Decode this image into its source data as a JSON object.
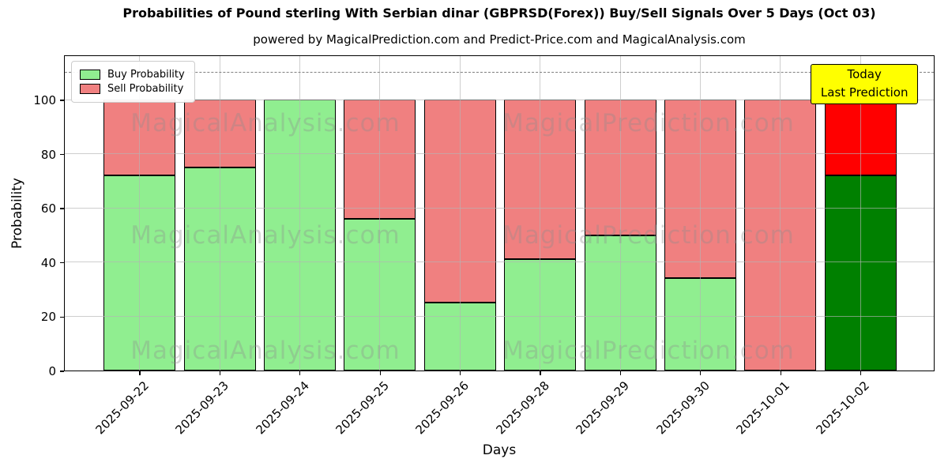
{
  "title": "Probabilities of Pound sterling With Serbian dinar (GBPRSD(Forex)) Buy/Sell Signals Over 5 Days (Oct 03)",
  "subtitle": "powered by MagicalPrediction.com and Predict-Price.com and MagicalAnalysis.com",
  "axes": {
    "xlabel": "Days",
    "ylabel": "Probability",
    "yticks": [
      0,
      20,
      40,
      60,
      80,
      100
    ],
    "ylim": [
      0,
      115.8
    ],
    "dashed_line_y": 110,
    "grid": true
  },
  "legend": {
    "items": [
      {
        "label": "Buy Probability",
        "color": "#90ee90"
      },
      {
        "label": "Sell Probability",
        "color": "#f08080"
      }
    ],
    "position": "upper left"
  },
  "annotation": {
    "lines": [
      "Today",
      "Last Prediction"
    ],
    "bg_color": "#ffff00"
  },
  "watermarks": {
    "left_text": "MagicalAnalysis.com",
    "right_text": "MagicalPrediction.com"
  },
  "colors": {
    "buy": "#90ee90",
    "sell": "#f08080",
    "today_buy": "#008000",
    "today_sell": "#ff0000",
    "bar_edge": "#000000",
    "grid": "rgba(180,180,180,0.65)",
    "dashed": "#7f7f7f"
  },
  "chart_data": {
    "type": "bar",
    "stacked": true,
    "title": "Probabilities of Pound sterling With Serbian dinar (GBPRSD(Forex)) Buy/Sell Signals Over 5 Days (Oct 03)",
    "xlabel": "Days",
    "ylabel": "Probability",
    "ylim": [
      0,
      115.8
    ],
    "grid": true,
    "legend_position": "upper left",
    "categories": [
      "2025-09-22",
      "2025-09-23",
      "2025-09-24",
      "2025-09-25",
      "2025-09-26",
      "2025-09-28",
      "2025-09-29",
      "2025-09-30",
      "2025-10-01",
      "2025-10-02"
    ],
    "series": [
      {
        "name": "Buy Probability",
        "values": [
          72,
          75,
          100,
          56,
          25,
          41,
          50,
          34,
          0,
          72
        ]
      },
      {
        "name": "Sell Probability",
        "values": [
          28,
          25,
          0,
          44,
          75,
          59,
          50,
          66,
          100,
          28
        ]
      }
    ],
    "today_index": 9,
    "today_annotation": "Today\nLast Prediction"
  }
}
